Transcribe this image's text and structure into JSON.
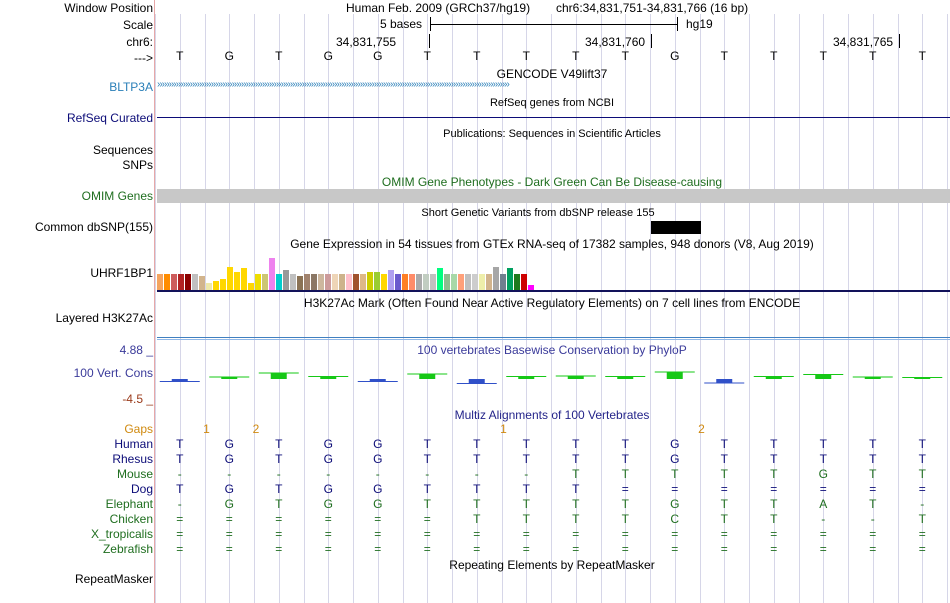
{
  "header": {
    "window_position_label": "Window Position",
    "scale_label": "Scale",
    "chrom_label": "chr6:",
    "strand_label": "--->",
    "assembly": "Human Feb. 2009 (GRCh37/hg19)",
    "range": "chr6:34,831,751-34,831,766 (16 bp)",
    "scale_text": "5 bases",
    "db": "hg19",
    "coords": [
      "34,831,755",
      "34,831,760",
      "34,831,765"
    ],
    "sequence": [
      "T",
      "G",
      "T",
      "G",
      "G",
      "T",
      "T",
      "T",
      "T",
      "T",
      "G",
      "T",
      "T",
      "T",
      "T",
      "T"
    ]
  },
  "tracks": {
    "gencode": {
      "title": "GENCODE V49lift37",
      "label": "BLTP3A",
      "color": "#2a7fb8"
    },
    "refseq": {
      "title": "RefSeq genes from NCBI",
      "label": "RefSeq Curated",
      "color": "#0c0c78"
    },
    "publications": {
      "title": "Publications: Sequences in Scientific Articles",
      "label": "Sequences"
    },
    "snps": {
      "label": "SNPs"
    },
    "omim": {
      "title": "OMIM Gene Phenotypes - Dark Green Can Be Disease-causing",
      "label": "OMIM Genes",
      "color": "#1f6e1f"
    },
    "dbsnp": {
      "title": "Short Genetic Variants from dbSNP release 155",
      "label": "Common dbSNP(155)"
    },
    "gtex": {
      "title": "Gene Expression in 54 tissues from GTEx RNA-seq of 17382 samples, 948 donors (V8, Aug 2019)",
      "label": "UHRF1BP1"
    },
    "h3k27ac": {
      "title": "H3K27Ac Mark (Often Found Near Active Regulatory Elements) on 7 cell lines from ENCODE",
      "label": "Layered H3K27Ac"
    },
    "phylop": {
      "title": "100 vertebrates Basewise Conservation by PhyloP",
      "label": "100 Vert. Cons",
      "max": "4.88 _",
      "min": "-4.5 _",
      "color": "#3a3a9a",
      "min_color": "#9a3a1a"
    },
    "multiz": {
      "title": "Multiz Alignments of 100 Vertebrates",
      "color": "#24248a"
    },
    "repeatmasker": {
      "title": "Repeating Elements by RepeatMasker",
      "label": "RepeatMasker"
    }
  },
  "gtex_values": [
    0.45,
    0.45,
    0.45,
    0.45,
    0.45,
    0.45,
    0.4,
    0.2,
    0.25,
    0.3,
    0.65,
    0.5,
    0.6,
    0.2,
    0.45,
    0.45,
    0.9,
    0.45,
    0.55,
    0.45,
    0.4,
    0.45,
    0.45,
    0.45,
    0.45,
    0.45,
    0.45,
    0.45,
    0.45,
    0.45,
    0.5,
    0.5,
    0.45,
    0.55,
    0.45,
    0.45,
    0.45,
    0.45,
    0.45,
    0.45,
    0.6,
    0.45,
    0.45,
    0.45,
    0.45,
    0.45,
    0.45,
    0.45,
    0.65,
    0.45,
    0.6,
    0.45,
    0.45,
    0.15
  ],
  "gtex_colors": [
    "#f4a460",
    "#ff8c00",
    "#cd5c5c",
    "#b22222",
    "#8b0000",
    "#c0c0c0",
    "#d2b48c",
    "#eee8aa",
    "#ffd700",
    "#ffd700",
    "#ffd700",
    "#ffd700",
    "#ffd700",
    "#ffd700",
    "#eedd00",
    "#cdc673",
    "#ee82ee",
    "#00cdcd",
    "#999999",
    "#c0c0c0",
    "#8b7355",
    "#a0826d",
    "#8b7765",
    "#cdb79e",
    "#cd9b9b",
    "#eed5b7",
    "#cdb38b",
    "#ffc0cb",
    "#a0522d",
    "#deb887",
    "#cdcd00",
    "#9acd32",
    "#ffd700",
    "#b0a0f0",
    "#6a5acd",
    "#ff7f24",
    "#ff8c69",
    "#aaaaaa",
    "#c1cdc1",
    "#c0c0c0",
    "#00ff7f",
    "#8fbc8f",
    "#a8d8a8",
    "#ffa07a",
    "#c0c0c0",
    "#cdcdcd",
    "#eeeeaa",
    "#d2b48c",
    "#a6a6a6",
    "#708090",
    "#00a060",
    "#1e7a1e",
    "#cd0000",
    "#ff00ff"
  ],
  "phylop_values": [
    -0.5,
    0.4,
    1.2,
    0.5,
    -0.5,
    1.0,
    -0.9,
    0.5,
    0.6,
    0.5,
    1.4,
    -0.8,
    0.5,
    0.9,
    0.4,
    0.3
  ],
  "species": [
    {
      "name": "Gaps",
      "color": "#d08a10",
      "bases": [
        "",
        "",
        "",
        "",
        "",
        "",
        "",
        "",
        "",
        "",
        "",
        "",
        "",
        "",
        "",
        ""
      ],
      "gaps": [
        {
          "after": 1,
          "text": "1"
        },
        {
          "after": 2,
          "text": "2"
        },
        {
          "after": 7,
          "text": "1"
        },
        {
          "after": 11,
          "text": "2"
        }
      ]
    },
    {
      "name": "Human",
      "color": "#0c0c78",
      "bases": [
        "T",
        "G",
        "T",
        "G",
        "G",
        "T",
        "T",
        "T",
        "T",
        "T",
        "G",
        "T",
        "T",
        "T",
        "T",
        "T"
      ]
    },
    {
      "name": "Rhesus",
      "color": "#0c0c78",
      "bases": [
        "T",
        "G",
        "T",
        "G",
        "G",
        "T",
        "T",
        "T",
        "T",
        "T",
        "G",
        "T",
        "T",
        "T",
        "T",
        "T"
      ]
    },
    {
      "name": "Mouse",
      "color": "#1f6e1f",
      "bases": [
        "-",
        "-",
        "-",
        "-",
        "-",
        "-",
        "-",
        "-",
        "T",
        "T",
        "T",
        "T",
        "T",
        "G",
        "T",
        "T"
      ]
    },
    {
      "name": "Dog",
      "color": "#0c0c78",
      "bases": [
        "T",
        "G",
        "T",
        "G",
        "G",
        "T",
        "T",
        "T",
        "T",
        "=",
        "=",
        "=",
        "=",
        "=",
        "=",
        "="
      ]
    },
    {
      "name": "Elephant",
      "color": "#1f6e1f",
      "bases": [
        "-",
        "G",
        "T",
        "G",
        "G",
        "T",
        "T",
        "T",
        "T",
        "T",
        "G",
        "T",
        "T",
        "A",
        "T",
        "-"
      ]
    },
    {
      "name": "Chicken",
      "color": "#1f6e1f",
      "bases": [
        "=",
        "=",
        "=",
        "=",
        "=",
        "=",
        "T",
        "T",
        "T",
        "T",
        "C",
        "T",
        "T",
        "-",
        "-",
        "T"
      ]
    },
    {
      "name": "X_tropicalis",
      "color": "#1f6e1f",
      "bases": [
        "=",
        "=",
        "=",
        "=",
        "=",
        "=",
        "=",
        "=",
        "=",
        "=",
        "=",
        "=",
        "=",
        "=",
        "=",
        "="
      ]
    },
    {
      "name": "Zebrafish",
      "color": "#1f6e1f",
      "bases": [
        "=",
        "=",
        "=",
        "=",
        "=",
        "=",
        "=",
        "=",
        "=",
        "=",
        "=",
        "=",
        "=",
        "=",
        "=",
        "="
      ]
    }
  ]
}
